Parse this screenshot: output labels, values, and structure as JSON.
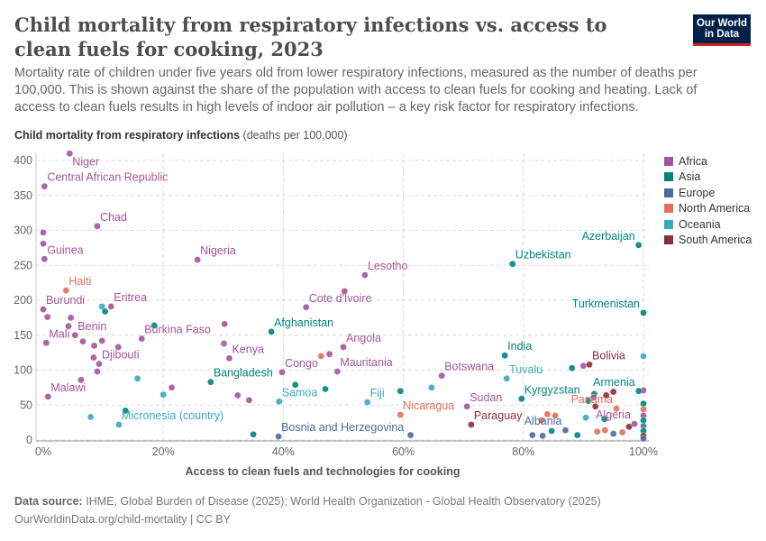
{
  "header": {
    "title": "Child mortality from respiratory infections vs. access to clean fuels for cooking, 2023",
    "subtitle": "Mortality rate of children under five years old from lower respiratory infections, measured as the number of deaths per 100,000. This is shown against the share of the population with access to clean fuels for cooking and heating. Lack of access to clean fuels results in high levels of indoor air pollution – a key risk factor for respiratory infections.",
    "logo": "Our World in Data"
  },
  "footer": {
    "source_label": "Data source:",
    "source": "IHME, Global Burden of Disease (2025); World Health Organization - Global Health Observatory (2025)",
    "url": "OurWorldinData.org/child-mortality | CC BY"
  },
  "chart_data": {
    "type": "scatter",
    "title": "Child mortality from respiratory infections vs. access to clean fuels for cooking, 2023",
    "ylabel": "Child mortality from respiratory infections",
    "yunit": "(deaths per 100,000)",
    "xlabel": "Access to clean fuels and technologies for cooking",
    "xlim": [
      0,
      100
    ],
    "ylim": [
      0,
      400
    ],
    "xticks": [
      "0%",
      "20%",
      "40%",
      "60%",
      "80%",
      "100%"
    ],
    "xtick_values": [
      0,
      20,
      40,
      60,
      80,
      100
    ],
    "yticks": [
      0,
      50,
      100,
      150,
      200,
      250,
      300,
      350,
      400
    ],
    "grid": true,
    "legend_position": "right",
    "legend": [
      {
        "name": "Africa",
        "color": "#a2559c"
      },
      {
        "name": "Asia",
        "color": "#00847e"
      },
      {
        "name": "Europe",
        "color": "#4c6a9c"
      },
      {
        "name": "North America",
        "color": "#e56e5a"
      },
      {
        "name": "Oceania",
        "color": "#38aaba"
      },
      {
        "name": "South America",
        "color": "#883039"
      }
    ],
    "points": [
      {
        "label": "Niger",
        "region": "Africa",
        "x": 4.4,
        "y": 410
      },
      {
        "label": "Central African Republic",
        "region": "Africa",
        "x": 0.2,
        "y": 363
      },
      {
        "label": "Chad",
        "region": "Africa",
        "x": 9,
        "y": 306
      },
      {
        "label": "Guinea",
        "region": "Africa",
        "x": 0.2,
        "y": 259
      },
      {
        "label": "Nigeria",
        "region": "Africa",
        "x": 25.7,
        "y": 258
      },
      {
        "label": "Haiti",
        "region": "North America",
        "x": 3.8,
        "y": 214
      },
      {
        "label": "Burundi",
        "region": "Africa",
        "x": 0,
        "y": 187
      },
      {
        "label": "Eritrea",
        "region": "Africa",
        "x": 11.3,
        "y": 191
      },
      {
        "label": "Benin",
        "region": "Africa",
        "x": 5.3,
        "y": 150
      },
      {
        "label": "Mali",
        "region": "Africa",
        "x": 0.5,
        "y": 139
      },
      {
        "label": "Burkina Faso",
        "region": "Africa",
        "x": 16.4,
        "y": 145
      },
      {
        "label": "Djibouti",
        "region": "Africa",
        "x": 9.3,
        "y": 109
      },
      {
        "label": "Malawi",
        "region": "Africa",
        "x": 0.8,
        "y": 62
      },
      {
        "label": "Micronesia (country)",
        "region": "Oceania",
        "x": 12.6,
        "y": 22
      },
      {
        "label": "Bangladesh",
        "region": "Asia",
        "x": 27.9,
        "y": 83
      },
      {
        "label": "Kenya",
        "region": "Africa",
        "x": 31,
        "y": 117
      },
      {
        "label": "Afghanistan",
        "region": "Asia",
        "x": 38,
        "y": 155
      },
      {
        "label": "Congo",
        "region": "Africa",
        "x": 39.8,
        "y": 97
      },
      {
        "label": "Samoa",
        "region": "Oceania",
        "x": 39.3,
        "y": 55
      },
      {
        "label": "Bosnia and Herzegovina",
        "region": "Europe",
        "x": 39.2,
        "y": 5
      },
      {
        "label": "Lesotho",
        "region": "Africa",
        "x": 53.6,
        "y": 236
      },
      {
        "label": "Cote d'Ivoire",
        "region": "Africa",
        "x": 43.8,
        "y": 190
      },
      {
        "label": "Angola",
        "region": "Africa",
        "x": 50,
        "y": 133
      },
      {
        "label": "Mauritania",
        "region": "Africa",
        "x": 49,
        "y": 98
      },
      {
        "label": "Fiji",
        "region": "Oceania",
        "x": 54,
        "y": 54
      },
      {
        "label": "Nicaragua",
        "region": "North America",
        "x": 59.5,
        "y": 36
      },
      {
        "label": "Botswana",
        "region": "Africa",
        "x": 66.4,
        "y": 92
      },
      {
        "label": "Sudan",
        "region": "Africa",
        "x": 70.6,
        "y": 48
      },
      {
        "label": "Paraguay",
        "region": "South America",
        "x": 71.3,
        "y": 22
      },
      {
        "label": "India",
        "region": "Asia",
        "x": 76.9,
        "y": 121
      },
      {
        "label": "Tuvalu",
        "region": "Oceania",
        "x": 77.2,
        "y": 88
      },
      {
        "label": "Kyrgyzstan",
        "region": "Asia",
        "x": 79.7,
        "y": 59
      },
      {
        "label": "Uzbekistan",
        "region": "Asia",
        "x": 78.2,
        "y": 252
      },
      {
        "label": "Azerbaijan",
        "region": "Asia",
        "x": 99.2,
        "y": 279
      },
      {
        "label": "Turkmenistan",
        "region": "Asia",
        "x": 100,
        "y": 182
      },
      {
        "label": "Bolivia",
        "region": "South America",
        "x": 91,
        "y": 108
      },
      {
        "label": "Armenia",
        "region": "Asia",
        "x": 99.2,
        "y": 70
      },
      {
        "label": "Panama",
        "region": "North America",
        "x": 95.5,
        "y": 45
      },
      {
        "label": "Albania",
        "region": "Europe",
        "x": 87,
        "y": 14
      },
      {
        "label": "Algeria",
        "region": "Africa",
        "x": 98.5,
        "y": 23
      },
      {
        "label": "",
        "region": "Africa",
        "x": 0,
        "y": 297
      },
      {
        "label": "",
        "region": "Africa",
        "x": 0,
        "y": 281
      },
      {
        "label": "",
        "region": "Africa",
        "x": 0.7,
        "y": 176
      },
      {
        "label": "",
        "region": "Africa",
        "x": 4.6,
        "y": 175
      },
      {
        "label": "",
        "region": "Africa",
        "x": 4.2,
        "y": 163
      },
      {
        "label": "",
        "region": "Africa",
        "x": 6.6,
        "y": 141
      },
      {
        "label": "",
        "region": "Africa",
        "x": 8.5,
        "y": 135
      },
      {
        "label": "",
        "region": "Africa",
        "x": 9.8,
        "y": 142
      },
      {
        "label": "",
        "region": "Africa",
        "x": 12.5,
        "y": 133
      },
      {
        "label": "",
        "region": "Africa",
        "x": 8.4,
        "y": 118
      },
      {
        "label": "",
        "region": "Africa",
        "x": 9,
        "y": 98
      },
      {
        "label": "",
        "region": "Africa",
        "x": 6.3,
        "y": 86
      },
      {
        "label": "",
        "region": "Oceania",
        "x": 9.8,
        "y": 191
      },
      {
        "label": "",
        "region": "Asia",
        "x": 10.3,
        "y": 184
      },
      {
        "label": "",
        "region": "Asia",
        "x": 18.5,
        "y": 164
      },
      {
        "label": "",
        "region": "Oceania",
        "x": 15.7,
        "y": 88
      },
      {
        "label": "",
        "region": "Oceania",
        "x": 20,
        "y": 65
      },
      {
        "label": "",
        "region": "Africa",
        "x": 21.4,
        "y": 75
      },
      {
        "label": "",
        "region": "Oceania",
        "x": 7.9,
        "y": 33
      },
      {
        "label": "",
        "region": "Asia",
        "x": 13.7,
        "y": 42
      },
      {
        "label": "",
        "region": "Africa",
        "x": 30.2,
        "y": 166
      },
      {
        "label": "",
        "region": "Africa",
        "x": 30.1,
        "y": 138
      },
      {
        "label": "",
        "region": "Africa",
        "x": 32.4,
        "y": 64
      },
      {
        "label": "",
        "region": "Africa",
        "x": 34.3,
        "y": 57
      },
      {
        "label": "",
        "region": "Asia",
        "x": 35,
        "y": 8
      },
      {
        "label": "",
        "region": "Asia",
        "x": 42,
        "y": 79
      },
      {
        "label": "",
        "region": "Africa",
        "x": 50.2,
        "y": 213
      },
      {
        "label": "",
        "region": "North America",
        "x": 46.3,
        "y": 120
      },
      {
        "label": "",
        "region": "Africa",
        "x": 47.7,
        "y": 123
      },
      {
        "label": "",
        "region": "Asia",
        "x": 47,
        "y": 73
      },
      {
        "label": "",
        "region": "Asia",
        "x": 59.5,
        "y": 70
      },
      {
        "label": "",
        "region": "Oceania",
        "x": 64.7,
        "y": 75
      },
      {
        "label": "",
        "region": "Europe",
        "x": 61.2,
        "y": 7
      },
      {
        "label": "",
        "region": "Asia",
        "x": 88.1,
        "y": 103
      },
      {
        "label": "",
        "region": "Africa",
        "x": 90,
        "y": 106
      },
      {
        "label": "",
        "region": "Oceania",
        "x": 100,
        "y": 120
      },
      {
        "label": "",
        "region": "Africa",
        "x": 100,
        "y": 71
      },
      {
        "label": "",
        "region": "South America",
        "x": 95,
        "y": 69
      },
      {
        "label": "",
        "region": "South America",
        "x": 93.8,
        "y": 64
      },
      {
        "label": "",
        "region": "Asia",
        "x": 91.8,
        "y": 66
      },
      {
        "label": "",
        "region": "Africa",
        "x": 91.7,
        "y": 61
      },
      {
        "label": "",
        "region": "Asia",
        "x": 90.8,
        "y": 56
      },
      {
        "label": "",
        "region": "South America",
        "x": 92,
        "y": 48
      },
      {
        "label": "",
        "region": "North America",
        "x": 83,
        "y": 28
      },
      {
        "label": "",
        "region": "North America",
        "x": 84,
        "y": 37
      },
      {
        "label": "",
        "region": "North America",
        "x": 85.3,
        "y": 35
      },
      {
        "label": "",
        "region": "Oceania",
        "x": 90.4,
        "y": 32
      },
      {
        "label": "",
        "region": "Asia",
        "x": 93.5,
        "y": 30
      },
      {
        "label": "",
        "region": "Asia",
        "x": 84.7,
        "y": 13
      },
      {
        "label": "",
        "region": "Europe",
        "x": 81.5,
        "y": 7
      },
      {
        "label": "",
        "region": "Europe",
        "x": 83.2,
        "y": 6
      },
      {
        "label": "",
        "region": "Asia",
        "x": 89,
        "y": 7
      },
      {
        "label": "",
        "region": "North America",
        "x": 92.3,
        "y": 12
      },
      {
        "label": "",
        "region": "North America",
        "x": 93.6,
        "y": 14
      },
      {
        "label": "",
        "region": "Europe",
        "x": 95,
        "y": 9
      },
      {
        "label": "",
        "region": "North America",
        "x": 96.5,
        "y": 11
      },
      {
        "label": "",
        "region": "South America",
        "x": 97.6,
        "y": 19
      },
      {
        "label": "",
        "region": "Asia",
        "x": 100,
        "y": 52
      },
      {
        "label": "",
        "region": "North America",
        "x": 100,
        "y": 44
      },
      {
        "label": "",
        "region": "Africa",
        "x": 100,
        "y": 35
      },
      {
        "label": "",
        "region": "Asia",
        "x": 100,
        "y": 28
      },
      {
        "label": "",
        "region": "Europe",
        "x": 100,
        "y": 20
      },
      {
        "label": "",
        "region": "Asia",
        "x": 100,
        "y": 13
      },
      {
        "label": "",
        "region": "South America",
        "x": 100,
        "y": 6
      },
      {
        "label": "",
        "region": "Europe",
        "x": 100,
        "y": 2
      }
    ]
  }
}
